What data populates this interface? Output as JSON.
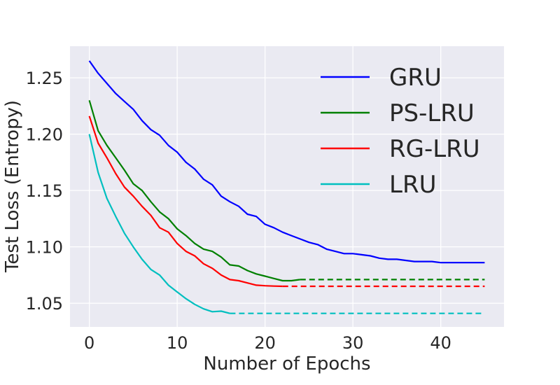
{
  "chart_data": {
    "type": "line",
    "title": "",
    "xlabel": "Number of Epochs",
    "ylabel": "Test Loss (Entropy)",
    "xlim": [
      -2.2,
      47.2
    ],
    "ylim": [
      1.029,
      1.278
    ],
    "xticks": [
      0,
      10,
      20,
      30,
      40
    ],
    "yticks": [
      1.05,
      1.1,
      1.15,
      1.2,
      1.25
    ],
    "xtick_labels": [
      "0",
      "10",
      "20",
      "30",
      "40"
    ],
    "ytick_labels": [
      "1.05",
      "1.10",
      "1.15",
      "1.20",
      "1.25"
    ],
    "grid": true,
    "legend": "top-right",
    "series": [
      {
        "name": "GRU",
        "color": "#0000ff",
        "x": [
          0,
          1,
          2,
          3,
          4,
          5,
          6,
          7,
          8,
          9,
          10,
          11,
          12,
          13,
          14,
          15,
          16,
          17,
          18,
          19,
          20,
          21,
          22,
          23,
          24,
          25,
          26,
          27,
          28,
          29,
          30,
          31,
          32,
          33,
          34,
          35,
          36,
          37,
          38,
          39,
          40,
          41,
          42,
          43,
          44,
          45
        ],
        "y": [
          1.265,
          1.254,
          1.245,
          1.236,
          1.229,
          1.222,
          1.212,
          1.204,
          1.199,
          1.19,
          1.184,
          1.175,
          1.169,
          1.16,
          1.155,
          1.145,
          1.14,
          1.136,
          1.129,
          1.127,
          1.12,
          1.117,
          1.113,
          1.11,
          1.107,
          1.104,
          1.102,
          1.098,
          1.096,
          1.094,
          1.094,
          1.093,
          1.092,
          1.09,
          1.089,
          1.089,
          1.088,
          1.087,
          1.087,
          1.087,
          1.086,
          1.086,
          1.086,
          1.086,
          1.086,
          1.086
        ],
        "dashed_from_x": null
      },
      {
        "name": "PS-LRU",
        "color": "#008000",
        "x": [
          0,
          1,
          2,
          3,
          4,
          5,
          6,
          7,
          8,
          9,
          10,
          11,
          12,
          13,
          14,
          15,
          16,
          17,
          18,
          19,
          20,
          21,
          22,
          23,
          24,
          45
        ],
        "y": [
          1.23,
          1.203,
          1.19,
          1.179,
          1.168,
          1.156,
          1.15,
          1.14,
          1.131,
          1.125,
          1.116,
          1.11,
          1.103,
          1.098,
          1.096,
          1.091,
          1.084,
          1.083,
          1.079,
          1.076,
          1.074,
          1.072,
          1.07,
          1.07,
          1.071,
          1.071
        ],
        "dashed_from_x": 24
      },
      {
        "name": "RG-LRU",
        "color": "#ff0000",
        "x": [
          0,
          1,
          2,
          3,
          4,
          5,
          6,
          7,
          8,
          9,
          10,
          11,
          12,
          13,
          14,
          15,
          16,
          17,
          18,
          19,
          20,
          21,
          22,
          45
        ],
        "y": [
          1.216,
          1.192,
          1.179,
          1.165,
          1.153,
          1.145,
          1.136,
          1.128,
          1.117,
          1.113,
          1.103,
          1.096,
          1.092,
          1.085,
          1.081,
          1.075,
          1.071,
          1.07,
          1.068,
          1.066,
          1.0655,
          1.0652,
          1.065,
          1.065
        ],
        "dashed_from_x": 22
      },
      {
        "name": "LRU",
        "color": "#00bfbf",
        "x": [
          0,
          1,
          2,
          3,
          4,
          5,
          6,
          7,
          8,
          9,
          10,
          11,
          12,
          13,
          14,
          15,
          16,
          45
        ],
        "y": [
          1.2,
          1.166,
          1.143,
          1.127,
          1.112,
          1.1,
          1.089,
          1.08,
          1.075,
          1.066,
          1.06,
          1.054,
          1.049,
          1.045,
          1.0425,
          1.043,
          1.041,
          1.041
        ],
        "dashed_from_x": 16
      }
    ]
  }
}
